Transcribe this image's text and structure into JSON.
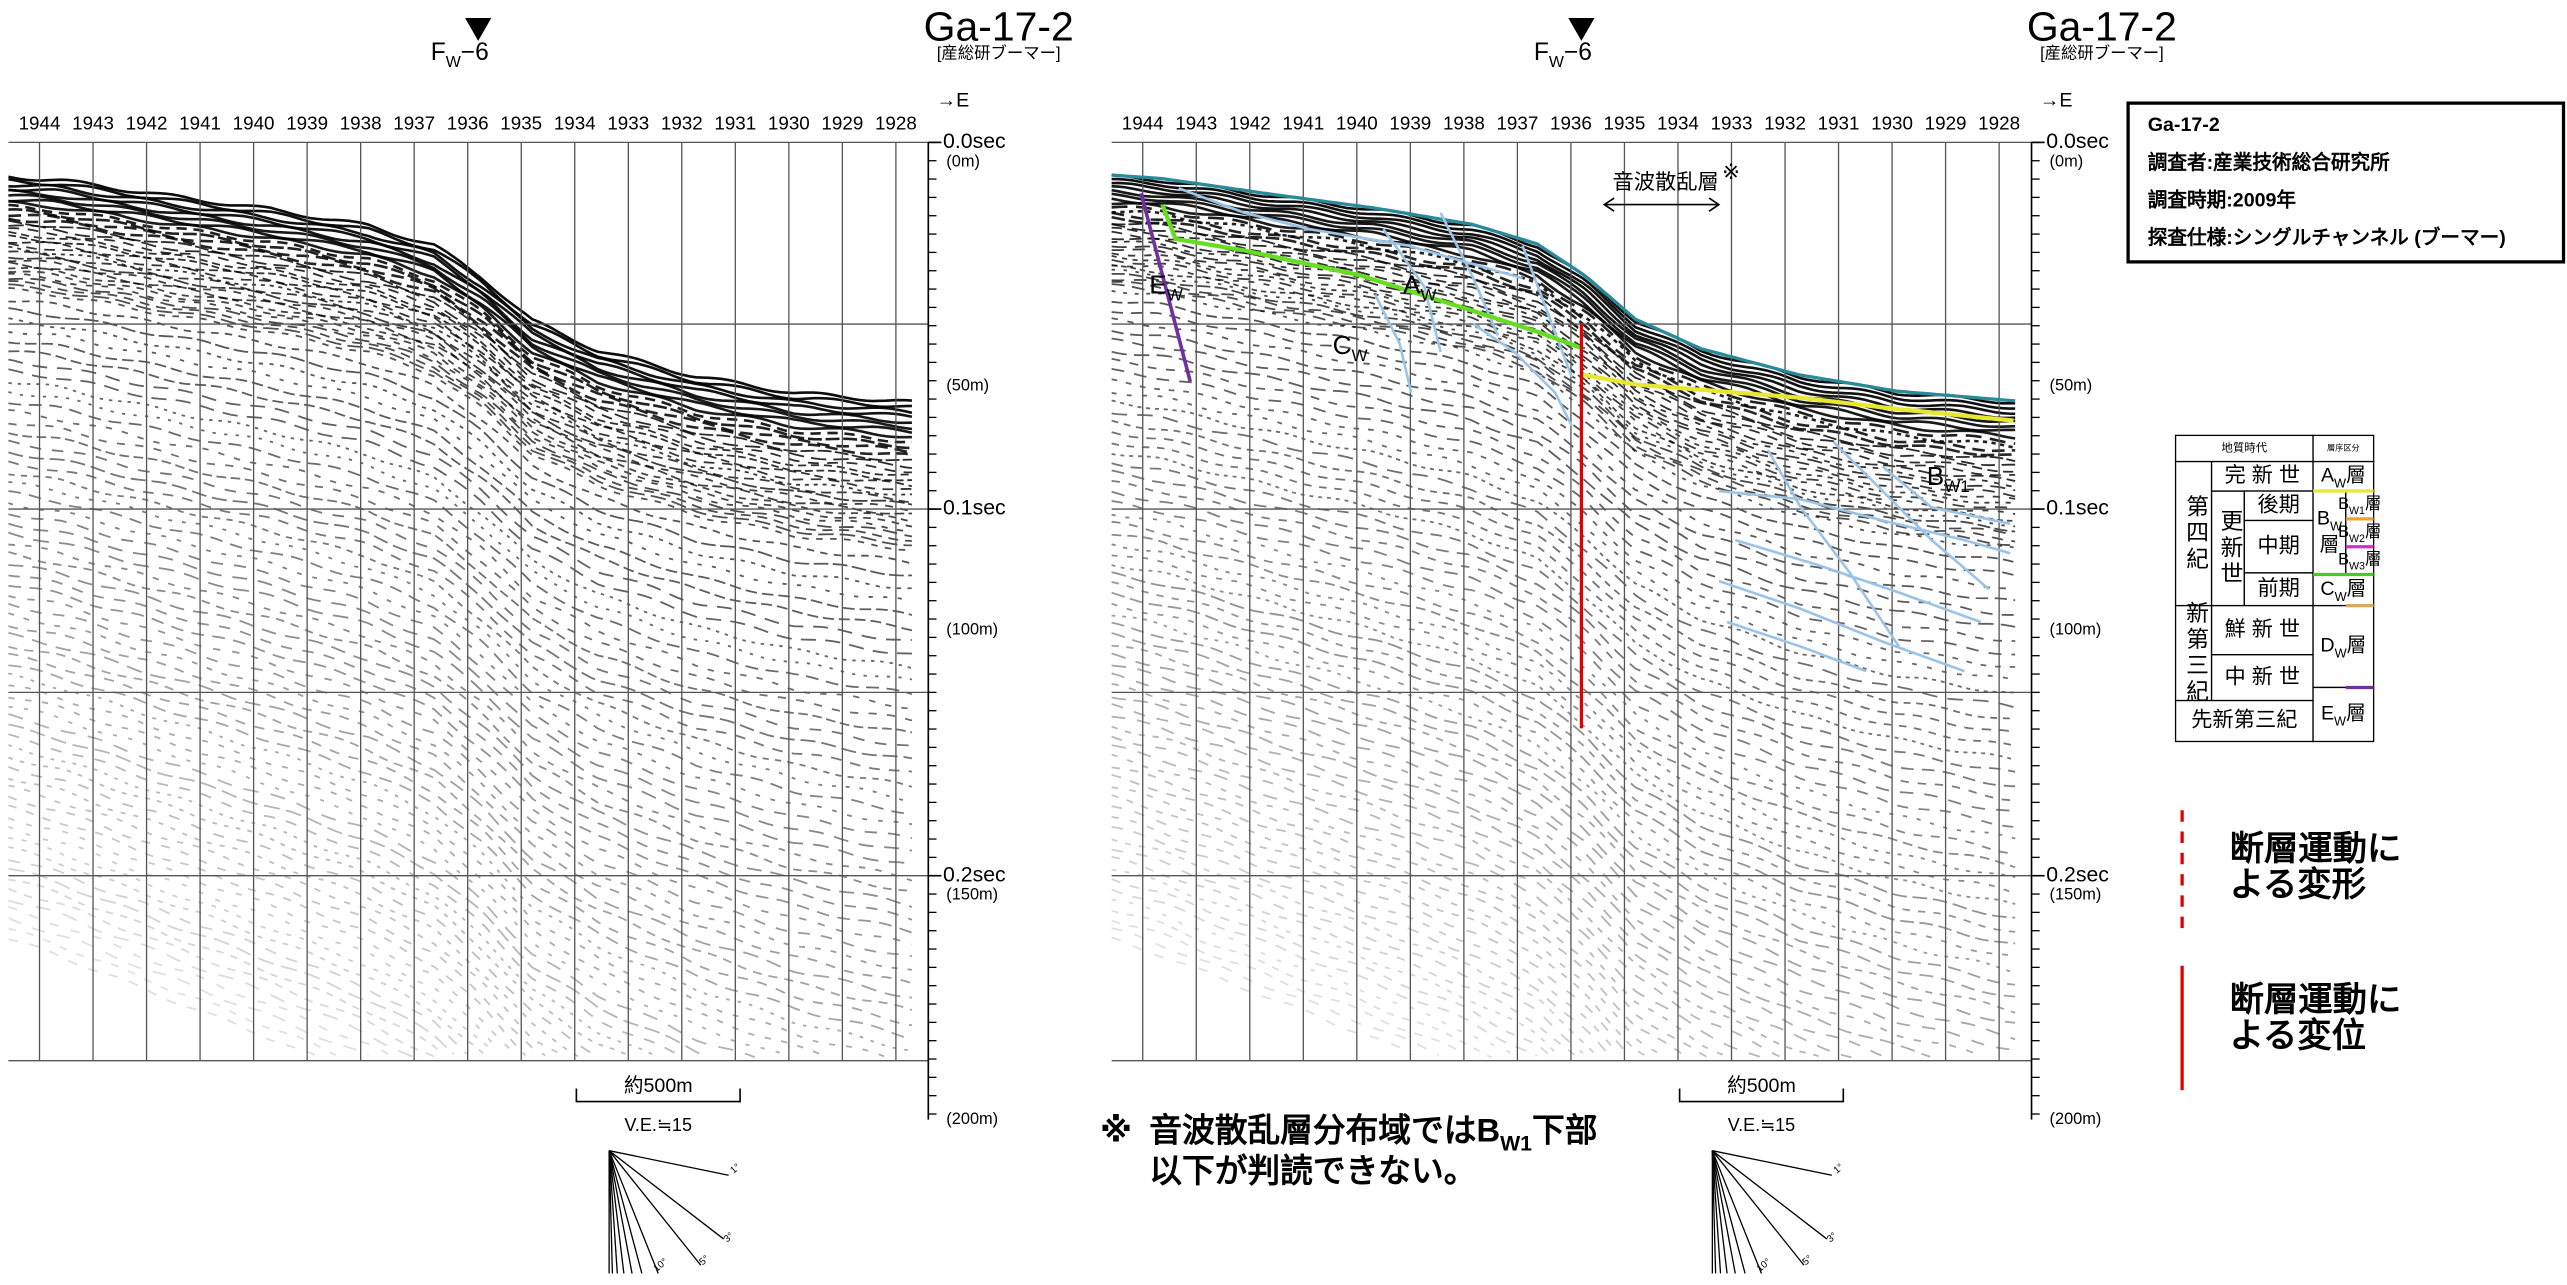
{
  "panels": [
    {
      "fault_label": {
        "main": "F",
        "sub": "W",
        "suffix": "−6"
      },
      "line_id": "Ga-17-2",
      "source": "[産総研ブーマー]",
      "direction": "→E",
      "shots": [
        1944,
        1943,
        1942,
        1941,
        1940,
        1939,
        1938,
        1937,
        1936,
        1935,
        1934,
        1933,
        1932,
        1931,
        1930,
        1929,
        1928
      ],
      "time_labels": [
        "0.0sec",
        "0.1sec",
        "0.2sec"
      ],
      "depth_labels": [
        "(0m)",
        "(50m)",
        "(100m)",
        "(150m)",
        "(200m)"
      ],
      "scale": {
        "length": "約500m",
        "ve": "V.E.≒15"
      },
      "slope_labels": [
        "1°",
        "3°",
        "5°",
        "10°"
      ]
    },
    {
      "fault_label": {
        "main": "F",
        "sub": "W",
        "suffix": "−6"
      },
      "line_id": "Ga-17-2",
      "source": "[産総研ブーマー]",
      "direction": "→E",
      "shots": [
        1944,
        1943,
        1942,
        1941,
        1940,
        1939,
        1938,
        1937,
        1936,
        1935,
        1934,
        1933,
        1932,
        1931,
        1930,
        1929,
        1928
      ],
      "time_labels": [
        "0.0sec",
        "0.1sec",
        "0.2sec"
      ],
      "depth_labels": [
        "(0m)",
        "(50m)",
        "(100m)",
        "(150m)",
        "(200m)"
      ],
      "scale": {
        "length": "約500m",
        "ve": "V.E.≒15"
      },
      "slope_labels": [
        "1°",
        "3°",
        "5°",
        "10°"
      ]
    }
  ],
  "interpretation": {
    "scatter_layer": {
      "text": "音波散乱層",
      "mark": "※"
    },
    "units": [
      {
        "main": "A",
        "sub": "W"
      },
      {
        "main": "C",
        "sub": "W"
      },
      {
        "main": "E",
        "sub": "W"
      },
      {
        "main": "B",
        "sub": "W1"
      }
    ]
  },
  "info_box": [
    "Ga-17-2",
    "調査者:産業技術総合研究所",
    "調査時期:2009年",
    "探査仕様:シングルチャンネル (ブーマー)"
  ],
  "strat_table": {
    "cells": [
      "地質時代",
      "層序区分",
      "第四紀",
      "更新世",
      "完 新 世",
      "後期",
      "中期",
      "前期",
      "新第三紀",
      "鮮 新 世",
      "中 新 世",
      "先新第三紀",
      {
        "main": "A",
        "sub": "W",
        "suffix": "層"
      },
      {
        "main": "B",
        "sub": "W",
        "suffix": "層"
      },
      {
        "main": "B",
        "sub": "W1",
        "suffix": "層"
      },
      {
        "main": "B",
        "sub": "W2",
        "suffix": "層"
      },
      {
        "main": "B",
        "sub": "W3",
        "suffix": "層"
      },
      {
        "main": "C",
        "sub": "W",
        "suffix": "層"
      },
      {
        "main": "D",
        "sub": "W",
        "suffix": "層"
      },
      {
        "main": "E",
        "sub": "W",
        "suffix": "層"
      }
    ]
  },
  "legend": [
    {
      "style": "dashed",
      "lines": [
        "断層運動に",
        "よる変形"
      ]
    },
    {
      "style": "solid",
      "lines": [
        "断層運動に",
        "よる変位"
      ]
    }
  ],
  "note": {
    "mark": "※",
    "line1": {
      "before": "音波散乱層分布域ではB",
      "sub": "W1",
      "after": "下部"
    },
    "line2": "以下が判読できない。"
  }
}
